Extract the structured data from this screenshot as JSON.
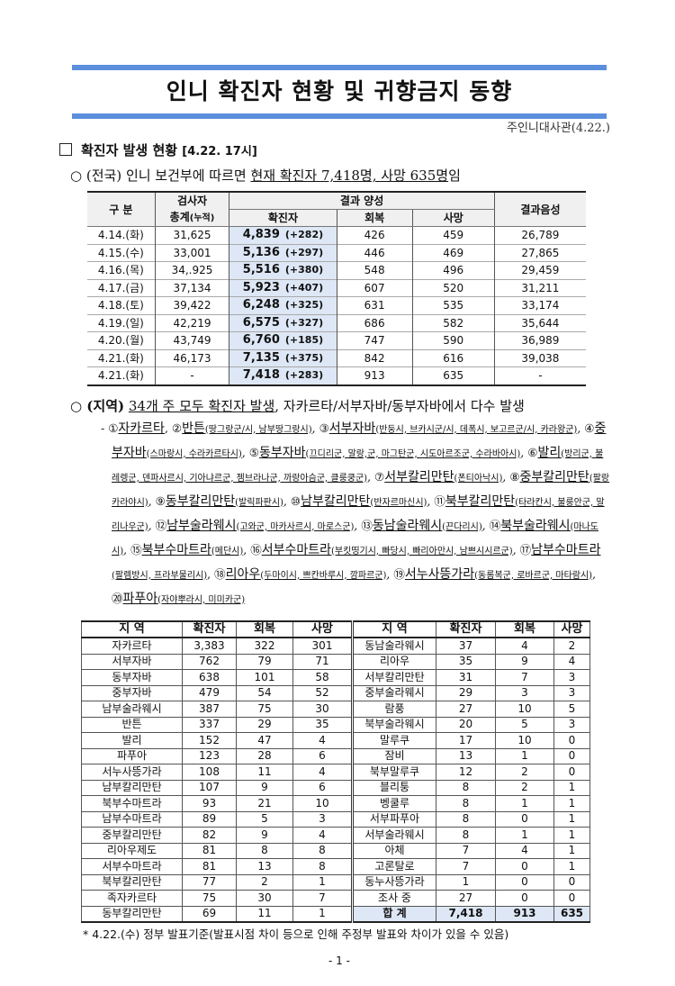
{
  "title": "인니 확진자 현황 및 귀향금지 동향",
  "org": "주인니대사관(4.22.)",
  "section": {
    "label": "확진자 발생 현황",
    "timestamp": "[4.22. 17시]"
  },
  "national": {
    "prefix": "○ (전국)",
    "text": " 인니 보건부에 따르면 ",
    "highlight": "현재 확진자 7,418명, 사망 635명",
    "suffix": "임"
  },
  "table1": {
    "headers": {
      "div": "구 분",
      "tested": "검사자",
      "tested2": "총계",
      "tested_note": "(누적)",
      "positive": "결과 양성",
      "confirmed": "확진자",
      "recovered": "회복",
      "deaths": "사망",
      "negative": "결과음성"
    },
    "rows": [
      {
        "date": "4.14.(화)",
        "tested": "31,625",
        "confirmed": "4,839",
        "inc": "(+282)",
        "recovered": "426",
        "deaths": "459",
        "negative": "26,789"
      },
      {
        "date": "4.15.(수)",
        "tested": "33,001",
        "confirmed": "5,136",
        "inc": "(+297)",
        "recovered": "446",
        "deaths": "469",
        "negative": "27,865"
      },
      {
        "date": "4.16.(목)",
        "tested": "34,.925",
        "confirmed": "5,516",
        "inc": "(+380)",
        "recovered": "548",
        "deaths": "496",
        "negative": "29,459"
      },
      {
        "date": "4.17.(금)",
        "tested": "37,134",
        "confirmed": "5,923",
        "inc": "(+407)",
        "recovered": "607",
        "deaths": "520",
        "negative": "31,211"
      },
      {
        "date": "4.18.(토)",
        "tested": "39,422",
        "confirmed": "6,248",
        "inc": "(+325)",
        "recovered": "631",
        "deaths": "535",
        "negative": "33,174"
      },
      {
        "date": "4.19.(일)",
        "tested": "42,219",
        "confirmed": "6,575",
        "inc": "(+327)",
        "recovered": "686",
        "deaths": "582",
        "negative": "35,644"
      },
      {
        "date": "4.20.(월)",
        "tested": "43,749",
        "confirmed": "6,760",
        "inc": "(+185)",
        "recovered": "747",
        "deaths": "590",
        "negative": "36,989"
      },
      {
        "date": "4.21.(화)",
        "tested": "46,173",
        "confirmed": "7,135",
        "inc": "(+375)",
        "recovered": "842",
        "deaths": "616",
        "negative": "39,038"
      },
      {
        "date": "4.21.(화)",
        "tested": "-",
        "confirmed": "7,418",
        "inc": "(+283)",
        "recovered": "913",
        "deaths": "635",
        "negative": "-"
      }
    ]
  },
  "regional": {
    "prefix": "○ (지역)",
    "highlight": "34개 주 모두 확진자 발생",
    "suffix": ", 자카르타/서부자바/동부자바에서 다수 발생",
    "dash": "- ",
    "items": [
      {
        "num": "①",
        "name": "자카르타",
        "sub": ""
      },
      {
        "num": "②",
        "name": "반튼",
        "sub": "(땅그랑군/시, 남부땅그랑시)"
      },
      {
        "num": "③",
        "name": "서부자바",
        "sub": "(반둥시, 브카시군/시, 데폭시, 보고르군/시, 카라왕군)"
      },
      {
        "num": "④",
        "name": "중부자바",
        "sub": "(스마랑시, 수라카르타시)"
      },
      {
        "num": "⑤",
        "name": "동부자바",
        "sub": "(끄디리군, 말랑,군, 마그탄군, 시도아르조군, 수라바아시)"
      },
      {
        "num": "⑥",
        "name": "발리",
        "sub": "(방리군, 불레렝군, 덴파사르시, 기아냐르군, 젬브라나군, 까랑아슴군, 클룽쿵군)"
      },
      {
        "num": "⑦",
        "name": "서부칼리만탄",
        "sub": "(폰티아낙시)"
      },
      {
        "num": "⑧",
        "name": "중부칼리만탄",
        "sub": "(팔랑카라야시)"
      },
      {
        "num": "⑨",
        "name": "동부칼리만탄",
        "sub": "(발릭파판시)"
      },
      {
        "num": "⑩",
        "name": "남부칼리만탄",
        "sub": "(반자르마신시)"
      },
      {
        "num": "⑪",
        "name": "북부칼리만탄",
        "sub": "(타라칸시, 불룽안군, 말리나우군)"
      },
      {
        "num": "⑫",
        "name": "남부술라웨시",
        "sub": "(고와군, 마카사르시, 마로스군)"
      },
      {
        "num": "⑬",
        "name": "동남술라웨시",
        "sub": "(끈다리시)"
      },
      {
        "num": "⑭",
        "name": "북부술라웨시",
        "sub": "(마나도시)"
      },
      {
        "num": "⑮",
        "name": "북부수마트라",
        "sub": "(메단시)"
      },
      {
        "num": "⑯",
        "name": "서부수마트라",
        "sub": "(부킷띵기시, 빠당시, 빠리아만시, 남쁘시시르군)"
      },
      {
        "num": "⑰",
        "name": "남부수마트라",
        "sub": "(팔렘방시, 프라부물리시)"
      },
      {
        "num": "⑱",
        "name": "리아우",
        "sub": "(두마이시, 쁘칸바루시, 깜파르군)"
      },
      {
        "num": "⑲",
        "name": "서누사뜽가라",
        "sub": "(동롬복군, 로바르군, 마타람시)"
      },
      {
        "num": "⑳",
        "name": "파푸아",
        "sub": "(자야뿌라시, 미미카군)"
      }
    ]
  },
  "table2": {
    "headers": {
      "region": "지 역",
      "confirmed": "확진자",
      "recovered": "회복",
      "deaths": "사망"
    },
    "left": [
      [
        "자카르타",
        "3,383",
        "322",
        "301"
      ],
      [
        "서부자바",
        "762",
        "79",
        "71"
      ],
      [
        "동부자바",
        "638",
        "101",
        "58"
      ],
      [
        "중부자바",
        "479",
        "54",
        "52"
      ],
      [
        "남부술라웨시",
        "387",
        "75",
        "30"
      ],
      [
        "반튼",
        "337",
        "29",
        "35"
      ],
      [
        "발리",
        "152",
        "47",
        "4"
      ],
      [
        "파푸아",
        "123",
        "28",
        "6"
      ],
      [
        "서누사뜽가라",
        "108",
        "11",
        "4"
      ],
      [
        "남부칼리만탄",
        "107",
        "9",
        "6"
      ],
      [
        "북부수마트라",
        "93",
        "21",
        "10"
      ],
      [
        "남부수마트라",
        "89",
        "5",
        "3"
      ],
      [
        "중부칼리만탄",
        "82",
        "9",
        "4"
      ],
      [
        "리아우제도",
        "81",
        "8",
        "8"
      ],
      [
        "서부수마트라",
        "81",
        "13",
        "8"
      ],
      [
        "북부칼리만탄",
        "77",
        "2",
        "1"
      ],
      [
        "족자카르타",
        "75",
        "30",
        "7"
      ],
      [
        "동부칼리만탄",
        "69",
        "11",
        "1"
      ]
    ],
    "right": [
      [
        "동남술라웨시",
        "37",
        "4",
        "2"
      ],
      [
        "리아우",
        "35",
        "9",
        "4"
      ],
      [
        "서부칼리만탄",
        "31",
        "7",
        "3"
      ],
      [
        "중부술라웨시",
        "29",
        "3",
        "3"
      ],
      [
        "람풍",
        "27",
        "10",
        "5"
      ],
      [
        "북부술라웨시",
        "20",
        "5",
        "3"
      ],
      [
        "말루쿠",
        "17",
        "10",
        "0"
      ],
      [
        "잠비",
        "13",
        "1",
        "0"
      ],
      [
        "북부말루쿠",
        "12",
        "2",
        "0"
      ],
      [
        "블리퉁",
        "8",
        "2",
        "1"
      ],
      [
        "벵쿨루",
        "8",
        "1",
        "1"
      ],
      [
        "서부파푸아",
        "8",
        "0",
        "1"
      ],
      [
        "서부술라웨시",
        "8",
        "1",
        "1"
      ],
      [
        "아체",
        "7",
        "4",
        "1"
      ],
      [
        "고론탈로",
        "7",
        "0",
        "1"
      ],
      [
        "동누사뜽가라",
        "1",
        "0",
        "0"
      ],
      [
        "조사 중",
        "27",
        "0",
        "0"
      ],
      [
        "합 계",
        "7,418",
        "913",
        "635"
      ]
    ]
  },
  "footnote": "* 4.22.(수) 정부 발표기준(발표시점 차이 등으로 인해 주정부 발표와 차이가 있을 수 있음)",
  "page_number": "- 1 -",
  "colors": {
    "title_bar": "#5b8fdc",
    "highlight_cell": "#dde7f5"
  }
}
